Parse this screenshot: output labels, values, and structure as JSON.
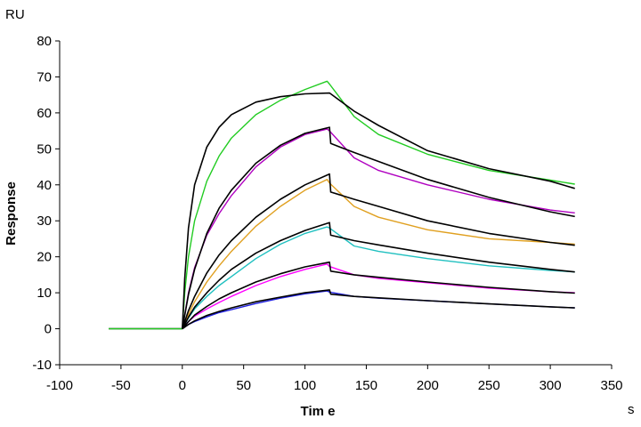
{
  "chart_data": {
    "type": "line",
    "title": "",
    "xlabel": "Tim e",
    "ylabel": "Response",
    "x_unit": "s",
    "y_unit": "RU",
    "xlim": [
      -100,
      350
    ],
    "ylim": [
      -10,
      80
    ],
    "x_ticks": [
      -100,
      -50,
      0,
      50,
      100,
      150,
      200,
      250,
      300,
      350
    ],
    "y_ticks": [
      -10,
      0,
      10,
      20,
      30,
      40,
      50,
      60,
      70,
      80
    ],
    "grid": false,
    "legend": "none",
    "baseline": {
      "x_start": -60,
      "x_end": 0,
      "y": 0
    },
    "association_end": 120,
    "series": [
      {
        "color": "#22cc22",
        "measured": {
          "x": [
            -60,
            0,
            2,
            5,
            10,
            20,
            30,
            40,
            60,
            80,
            100,
            118,
            120,
            140,
            160,
            200,
            250,
            300,
            320
          ],
          "y": [
            0,
            0,
            10,
            20,
            30,
            41,
            48,
            53,
            59.5,
            63.5,
            66.5,
            68.8,
            68,
            59,
            54,
            48.5,
            44,
            41.3,
            40.2
          ]
        },
        "fit": {
          "x": [
            0,
            2,
            5,
            10,
            20,
            30,
            40,
            60,
            80,
            100,
            120,
            121,
            140,
            160,
            200,
            250,
            300,
            320
          ],
          "y": [
            0,
            14,
            28,
            40,
            50.5,
            56,
            59.5,
            63,
            64.5,
            65.3,
            65.5,
            65.3,
            60.5,
            56.5,
            49.5,
            44.5,
            41,
            39
          ]
        }
      },
      {
        "color": "#b000c0",
        "measured": {
          "x": [
            0,
            5,
            10,
            20,
            30,
            40,
            60,
            80,
            100,
            118,
            120,
            140,
            160,
            200,
            250,
            300,
            320
          ],
          "y": [
            0,
            10,
            17,
            26,
            32,
            37,
            45,
            50.5,
            54,
            55.5,
            55,
            47.5,
            44,
            40,
            36,
            33,
            32.2
          ]
        },
        "fit": {
          "x": [
            0,
            5,
            10,
            20,
            30,
            40,
            60,
            80,
            100,
            120,
            121,
            140,
            160,
            200,
            250,
            300,
            320
          ],
          "y": [
            0,
            9.5,
            16.5,
            26.5,
            33.5,
            38.5,
            46,
            51,
            54.3,
            56,
            51.5,
            49,
            46.5,
            41.5,
            36.5,
            32.5,
            31.2
          ]
        }
      },
      {
        "color": "#e0a020",
        "measured": {
          "x": [
            0,
            5,
            10,
            20,
            30,
            40,
            60,
            80,
            100,
            118,
            120,
            140,
            160,
            200,
            250,
            300,
            320
          ],
          "y": [
            0,
            4,
            7.5,
            13,
            17.5,
            21.5,
            28.5,
            34,
            38.5,
            41.5,
            40.5,
            34,
            31,
            27.5,
            25,
            24,
            23.5
          ]
        },
        "fit": {
          "x": [
            0,
            5,
            10,
            20,
            30,
            40,
            60,
            80,
            100,
            120,
            121,
            140,
            160,
            200,
            250,
            300,
            320
          ],
          "y": [
            0,
            5,
            9,
            15.5,
            20.5,
            24.5,
            31,
            36,
            40,
            43,
            38,
            36,
            34,
            30,
            26.5,
            24,
            23.2
          ]
        }
      },
      {
        "color": "#20c0c0",
        "measured": {
          "x": [
            0,
            5,
            10,
            20,
            30,
            40,
            60,
            80,
            100,
            118,
            120,
            140,
            160,
            200,
            250,
            300,
            320
          ],
          "y": [
            0,
            3,
            5.5,
            9,
            12,
            14.5,
            19.5,
            23.5,
            26.5,
            28.3,
            28,
            23,
            21.5,
            19.5,
            17.5,
            16.2,
            15.8
          ]
        },
        "fit": {
          "x": [
            0,
            5,
            10,
            20,
            30,
            40,
            60,
            80,
            100,
            120,
            121,
            140,
            160,
            200,
            250,
            300,
            320
          ],
          "y": [
            0,
            3.2,
            6,
            10,
            13.5,
            16.5,
            21,
            24.5,
            27.3,
            29.5,
            26,
            24.5,
            23.3,
            21,
            18.5,
            16.5,
            15.8
          ]
        }
      },
      {
        "color": "#ff00ff",
        "measured": {
          "x": [
            0,
            5,
            10,
            20,
            30,
            40,
            60,
            80,
            100,
            118,
            120,
            140,
            160,
            200,
            250,
            300,
            320
          ],
          "y": [
            0,
            2,
            3.5,
            5.5,
            7.3,
            9,
            12,
            14.5,
            16.5,
            18,
            17.3,
            15,
            14,
            12.8,
            11.3,
            10.3,
            10
          ]
        },
        "fit": {
          "x": [
            0,
            5,
            10,
            20,
            30,
            40,
            60,
            80,
            100,
            120,
            121,
            140,
            160,
            200,
            250,
            300,
            320
          ],
          "y": [
            0,
            2,
            3.8,
            6.2,
            8.3,
            10,
            13,
            15.3,
            17.2,
            18.5,
            16,
            15,
            14.3,
            13,
            11.5,
            10.3,
            9.9
          ]
        }
      },
      {
        "color": "#2020e0",
        "measured": {
          "x": [
            0,
            5,
            10,
            20,
            30,
            40,
            60,
            80,
            100,
            118,
            120,
            140,
            160,
            200,
            250,
            300,
            320
          ],
          "y": [
            0,
            1.2,
            2,
            3.3,
            4.5,
            5.3,
            7,
            8.5,
            9.7,
            10.5,
            10.2,
            9,
            8.5,
            7.8,
            6.9,
            6.1,
            5.8
          ]
        },
        "fit": {
          "x": [
            0,
            5,
            10,
            20,
            30,
            40,
            60,
            80,
            100,
            120,
            121,
            140,
            160,
            200,
            250,
            300,
            320
          ],
          "y": [
            0,
            1.2,
            2.2,
            3.7,
            4.8,
            5.8,
            7.5,
            8.8,
            10,
            10.8,
            9.6,
            9,
            8.6,
            7.8,
            6.9,
            6.1,
            5.8
          ]
        }
      }
    ],
    "fit_color": "#000000"
  }
}
